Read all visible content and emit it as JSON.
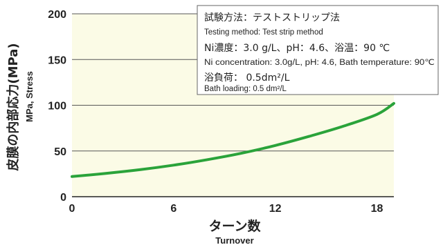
{
  "chart_data": {
    "type": "line",
    "title": "",
    "xlabel": "ターン数",
    "xlabel_en": "Turnover",
    "ylabel": "皮膜の内部応力(MPa)",
    "ylabel_en": "MPa, Stress",
    "xlim": [
      0,
      19
    ],
    "ylim": [
      0,
      200
    ],
    "x_ticks": [
      0,
      6,
      12,
      18
    ],
    "y_ticks": [
      0,
      50,
      100,
      150,
      200
    ],
    "grid": "horizontal",
    "colors": {
      "plot_background": "#fbfbe6",
      "line": "#2aa33a",
      "grid": "#555555"
    },
    "series": [
      {
        "x": [
          0,
          2,
          4,
          6,
          8,
          10,
          12,
          14,
          16,
          18,
          19
        ],
        "y": [
          22,
          25.5,
          29.5,
          34.5,
          40.5,
          47.5,
          56,
          66,
          77,
          90,
          102
        ]
      }
    ],
    "annotations": [
      {
        "text": "試験方法：テストストリップ法",
        "lang": "ja"
      },
      {
        "text": "Testing method: Test strip method",
        "lang": "en"
      },
      {
        "text": "Ni濃度：3.0 g/L、pH：4.6、浴温：90 ℃",
        "lang": "ja"
      },
      {
        "text": "Ni concentration: 3.0g/L, pH: 4.6, Bath temperature: 90℃",
        "lang": "en"
      },
      {
        "text": "浴負荷： 0.5dm²/L",
        "lang": "ja"
      },
      {
        "text": "Bath loading: 0.5 dm²/L",
        "lang": "en"
      }
    ]
  }
}
